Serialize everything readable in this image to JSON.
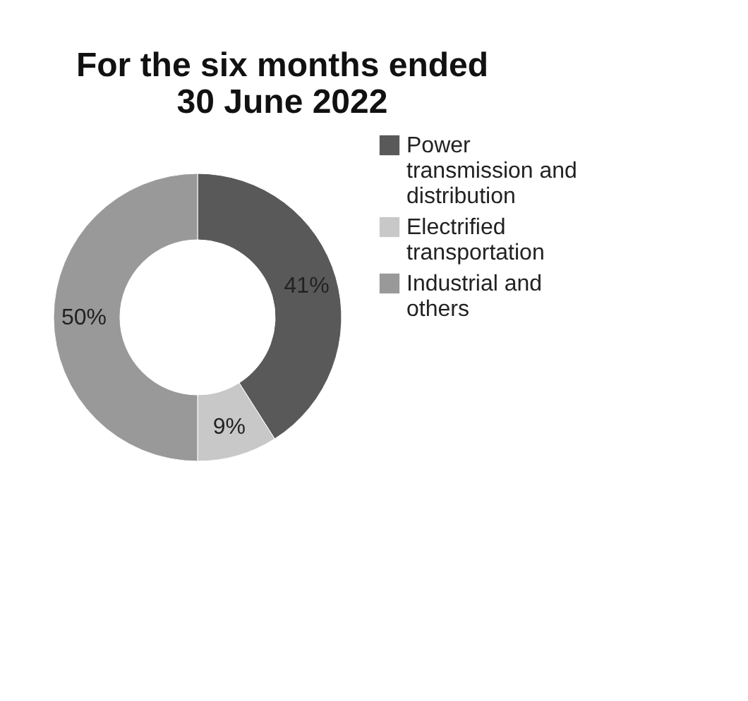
{
  "chart_data": {
    "type": "donut",
    "title": "For the six months ended 30 June 2022",
    "categories": [
      "Power transmission and distribution",
      "Electrified transportation",
      "Industrial and others"
    ],
    "values": [
      41,
      9,
      50
    ],
    "colors": [
      "#595959",
      "#c8c8c8",
      "#999999"
    ],
    "value_labels": [
      "41%",
      "9%",
      "50%"
    ],
    "legend": "right"
  }
}
